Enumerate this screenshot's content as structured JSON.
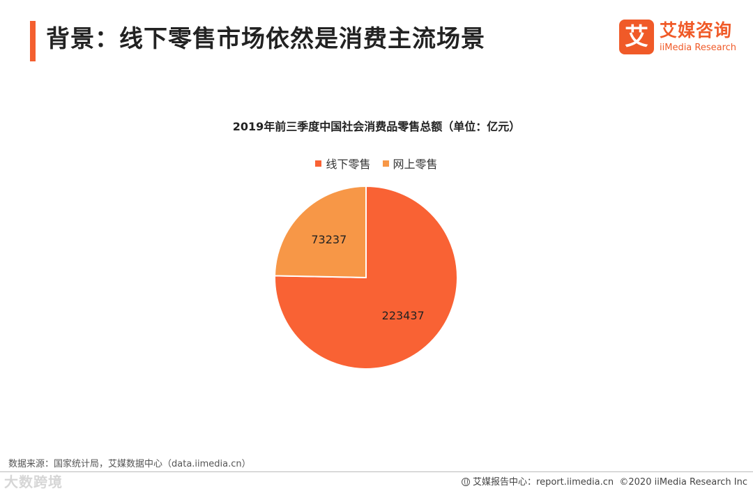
{
  "header": {
    "title": "背景：线下零售市场依然是消费主流场景",
    "accent_color": "#f45f2f"
  },
  "brand": {
    "logo_glyph": "艾",
    "name_cn": "艾媒咨询",
    "name_en": "iiMedia Research",
    "color": "#f05a28"
  },
  "chart_data": {
    "type": "pie",
    "title": "2019年前三季度中国社会消费品零售总额（单位：亿元）",
    "legend_position": "top",
    "series": [
      {
        "name": "线下零售",
        "value": 223437,
        "label": "223437",
        "color": "#f96234"
      },
      {
        "name": "网上零售",
        "value": 73237,
        "label": "73237",
        "color": "#f79747"
      }
    ]
  },
  "footer": {
    "source": "数据来源：国家统计局，艾媒数据中心（data.iimedia.cn）",
    "watermark": "大数跨境",
    "report_site": "艾媒报告中心：report.iimedia.cn",
    "copyright": "©2020  iiMedia Research  Inc"
  }
}
